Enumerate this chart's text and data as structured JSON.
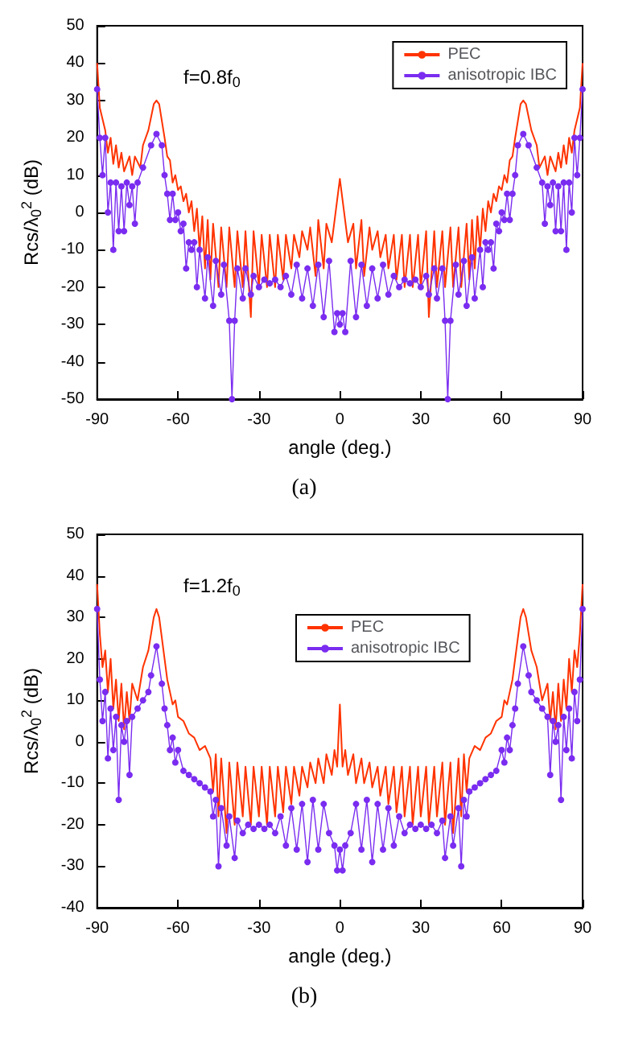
{
  "chart_data": [
    {
      "type": "line",
      "xlabel": "angle (deg.)",
      "ylabel": "Rcs/λ$_{0}$$^{2}$ (dB)",
      "annotations": [
        "f=0.8f$_{0}$",
        "(a)"
      ],
      "xlim": [
        -90,
        90
      ],
      "xticks": [
        -90,
        -60,
        -30,
        0,
        30,
        60,
        90
      ],
      "ylim": [
        -50,
        50
      ],
      "yticks": [
        -50,
        -40,
        -30,
        -20,
        -10,
        0,
        10,
        20,
        30,
        40,
        50
      ],
      "legend": "top right",
      "series": [
        {
          "name": "PEC",
          "color": "#ff3300",
          "marker": "none",
          "x": [
            -90,
            -89,
            -87,
            -86,
            -85,
            -84,
            -83,
            -82,
            -81,
            -80,
            -78,
            -77,
            -76,
            -74,
            -73,
            -71,
            -69,
            -68,
            -67,
            -65,
            -64,
            -63,
            -62,
            -61,
            -60,
            -59,
            -58,
            -57,
            -56,
            -55,
            -54,
            -53,
            -52,
            -51,
            -50,
            -49,
            -48,
            -47,
            -45,
            -44,
            -42,
            -41,
            -39,
            -38,
            -36,
            -35,
            -33,
            -32,
            -30,
            -29,
            -27,
            -26,
            -24,
            -23,
            -21,
            -20,
            -18,
            -17,
            -15,
            -14,
            -12,
            -11,
            -9,
            -8,
            -6,
            -5,
            -3,
            0,
            3,
            5,
            6,
            8,
            9,
            11,
            12,
            14,
            15,
            17,
            18,
            20,
            21,
            23,
            24,
            26,
            27,
            29,
            30,
            32,
            33,
            35,
            36,
            38,
            39,
            41,
            42,
            44,
            45,
            47,
            48,
            49,
            50,
            51,
            52,
            53,
            54,
            55,
            56,
            57,
            58,
            59,
            60,
            61,
            62,
            63,
            64,
            65,
            67,
            68,
            69,
            71,
            73,
            74,
            76,
            77,
            78,
            80,
            81,
            82,
            83,
            84,
            85,
            86,
            87,
            89,
            90
          ],
          "values": [
            40,
            28,
            22,
            16,
            20,
            13,
            18,
            12,
            16,
            11,
            15,
            10,
            15,
            12,
            18,
            22,
            29,
            30,
            29,
            20,
            15,
            14,
            8,
            10,
            6,
            7,
            3,
            5,
            0,
            3,
            -5,
            1,
            -10,
            -1,
            -15,
            -2,
            -18,
            -3,
            -20,
            -4,
            -20,
            -4,
            -20,
            -5,
            -20,
            -5,
            -28,
            -5,
            -20,
            -6,
            -20,
            -6,
            -20,
            -6,
            -18,
            -6,
            -15,
            -6,
            -12,
            -5,
            -10,
            -4,
            -17,
            -2,
            -15,
            -3,
            -8,
            9,
            -8,
            -3,
            -15,
            -2,
            -17,
            -4,
            -10,
            -5,
            -12,
            -6,
            -15,
            -6,
            -18,
            -6,
            -20,
            -6,
            -20,
            -6,
            -20,
            -5,
            -28,
            -5,
            -20,
            -5,
            -20,
            -4,
            -20,
            -4,
            -20,
            -3,
            -18,
            -2,
            -15,
            -1,
            -10,
            1,
            -5,
            3,
            0,
            5,
            3,
            7,
            6,
            10,
            8,
            14,
            15,
            20,
            29,
            30,
            29,
            22,
            18,
            12,
            15,
            10,
            15,
            11,
            16,
            12,
            18,
            13,
            20,
            16,
            22,
            28,
            40
          ]
        },
        {
          "name": "anisotropic IBC",
          "color": "#7a2cf0",
          "marker": "circle",
          "x": [
            -90,
            -89,
            -88,
            -87,
            -86,
            -85,
            -84,
            -83,
            -82,
            -81,
            -80,
            -79,
            -78,
            -77,
            -76,
            -75,
            -73,
            -70,
            -68,
            -66,
            -65,
            -64,
            -63,
            -62,
            -61,
            -60,
            -59,
            -58,
            -57,
            -56,
            -55,
            -54,
            -53,
            -52,
            -50,
            -49,
            -47,
            -46,
            -44,
            -43,
            -41,
            -40,
            -39,
            -38,
            -36,
            -35,
            -33,
            -32,
            -30,
            -28,
            -26,
            -24,
            -22,
            -20,
            -18,
            -16,
            -14,
            -12,
            -10,
            -8,
            -6,
            -4,
            -2,
            -1,
            0,
            1,
            2,
            4,
            6,
            8,
            10,
            12,
            14,
            16,
            18,
            20,
            22,
            24,
            26,
            28,
            30,
            32,
            33,
            35,
            36,
            38,
            39,
            40,
            41,
            43,
            44,
            46,
            47,
            49,
            50,
            52,
            53,
            54,
            55,
            56,
            57,
            58,
            59,
            60,
            61,
            62,
            63,
            64,
            65,
            66,
            68,
            70,
            73,
            75,
            76,
            77,
            78,
            79,
            80,
            81,
            82,
            83,
            84,
            85,
            86,
            87,
            88,
            89,
            90
          ],
          "values": [
            33,
            20,
            10,
            20,
            0,
            8,
            -10,
            8,
            -5,
            7,
            -5,
            8,
            2,
            7,
            -3,
            8,
            12,
            18,
            21,
            18,
            10,
            5,
            -2,
            5,
            -2,
            0,
            -5,
            -3,
            -15,
            -8,
            -10,
            -8,
            -20,
            -10,
            -23,
            -12,
            -25,
            -13,
            -22,
            -14,
            -29,
            -50,
            -29,
            -15,
            -23,
            -15,
            -22,
            -17,
            -20,
            -18,
            -19,
            -18,
            -20,
            -17,
            -22,
            -14,
            -23,
            -15,
            -25,
            -14,
            -28,
            -13,
            -32,
            -27,
            -30,
            -27,
            -32,
            -13,
            -28,
            -14,
            -25,
            -15,
            -23,
            -14,
            -22,
            -17,
            -20,
            -18,
            -19,
            -18,
            -20,
            -17,
            -22,
            -15,
            -23,
            -15,
            -29,
            -50,
            -29,
            -14,
            -22,
            -13,
            -25,
            -12,
            -23,
            -10,
            -20,
            -8,
            -10,
            -8,
            -15,
            -3,
            -5,
            0,
            -2,
            5,
            -2,
            5,
            10,
            18,
            21,
            18,
            12,
            8,
            -3,
            7,
            2,
            8,
            -5,
            7,
            -5,
            8,
            -10,
            8,
            0,
            20,
            10,
            20,
            33
          ]
        }
      ]
    },
    {
      "type": "line",
      "xlabel": "angle (deg.)",
      "ylabel": "Rcs/λ$_{0}$$^{2}$ (dB)",
      "annotations": [
        "f=1.2f$_{0}$",
        "(b)"
      ],
      "xlim": [
        -90,
        90
      ],
      "xticks": [
        -90,
        -60,
        -30,
        0,
        30,
        60,
        90
      ],
      "ylim": [
        -40,
        50
      ],
      "yticks": [
        -40,
        -30,
        -20,
        -10,
        0,
        10,
        20,
        30,
        40,
        50
      ],
      "legend": "top",
      "series": [
        {
          "name": "PEC",
          "color": "#ff3300",
          "marker": "none",
          "x": [
            -90,
            -89,
            -88,
            -87,
            -86,
            -85,
            -84,
            -83,
            -82,
            -81,
            -80,
            -79,
            -78,
            -77,
            -75,
            -73,
            -71,
            -69,
            -68,
            -67,
            -65,
            -64,
            -63,
            -62,
            -61,
            -60,
            -58,
            -56,
            -54,
            -52,
            -50,
            -48,
            -47,
            -46,
            -45,
            -44,
            -42,
            -41,
            -39,
            -38,
            -36,
            -35,
            -33,
            -32,
            -30,
            -29,
            -27,
            -26,
            -24,
            -23,
            -21,
            -20,
            -18,
            -17,
            -15,
            -14,
            -12,
            -11,
            -9,
            -8,
            -6,
            -5,
            -3,
            -2,
            -1,
            0,
            1,
            2,
            3,
            5,
            6,
            8,
            9,
            11,
            12,
            14,
            15,
            17,
            18,
            20,
            21,
            23,
            24,
            26,
            27,
            29,
            30,
            32,
            33,
            35,
            36,
            38,
            39,
            41,
            42,
            44,
            45,
            46,
            47,
            48,
            50,
            52,
            54,
            56,
            58,
            60,
            61,
            62,
            63,
            64,
            65,
            67,
            68,
            69,
            71,
            73,
            75,
            77,
            78,
            79,
            80,
            81,
            82,
            83,
            84,
            85,
            86,
            87,
            88,
            89,
            90
          ],
          "values": [
            38,
            26,
            18,
            22,
            12,
            20,
            8,
            15,
            5,
            14,
            3,
            12,
            5,
            14,
            10,
            18,
            22,
            30,
            32,
            30,
            20,
            15,
            12,
            9,
            10,
            6,
            5,
            2,
            1,
            -2,
            -1,
            -4,
            -12,
            -3,
            -18,
            -4,
            -22,
            -5,
            -20,
            -5,
            -18,
            -6,
            -20,
            -6,
            -18,
            -6,
            -20,
            -6,
            -18,
            -6,
            -17,
            -6,
            -15,
            -6,
            -13,
            -6,
            -11,
            -5,
            -10,
            -4,
            -10,
            -3,
            -8,
            -2,
            -6,
            9,
            -6,
            -2,
            -8,
            -3,
            -10,
            -4,
            -10,
            -5,
            -11,
            -6,
            -13,
            -6,
            -15,
            -6,
            -17,
            -6,
            -18,
            -6,
            -20,
            -6,
            -18,
            -6,
            -20,
            -6,
            -18,
            -5,
            -20,
            -5,
            -22,
            -4,
            -18,
            -3,
            -12,
            -4,
            -1,
            -2,
            1,
            2,
            5,
            6,
            10,
            9,
            12,
            15,
            20,
            30,
            32,
            30,
            22,
            18,
            10,
            14,
            5,
            12,
            3,
            14,
            5,
            15,
            8,
            20,
            12,
            22,
            18,
            26,
            38
          ]
        },
        {
          "name": "anisotropic IBC",
          "color": "#7a2cf0",
          "marker": "circle",
          "x": [
            -90,
            -89,
            -88,
            -87,
            -86,
            -85,
            -84,
            -83,
            -82,
            -81,
            -80,
            -79,
            -78,
            -77,
            -75,
            -73,
            -71,
            -70,
            -68,
            -66,
            -65,
            -64,
            -63,
            -62,
            -61,
            -60,
            -58,
            -56,
            -54,
            -52,
            -50,
            -48,
            -47,
            -46,
            -45,
            -44,
            -42,
            -41,
            -39,
            -38,
            -36,
            -34,
            -32,
            -30,
            -28,
            -26,
            -24,
            -22,
            -20,
            -18,
            -16,
            -14,
            -12,
            -10,
            -8,
            -6,
            -4,
            -2,
            -1,
            0,
            1,
            2,
            4,
            6,
            8,
            10,
            12,
            14,
            16,
            18,
            20,
            22,
            24,
            26,
            28,
            30,
            32,
            34,
            36,
            38,
            39,
            41,
            42,
            44,
            45,
            46,
            47,
            48,
            50,
            52,
            54,
            56,
            58,
            60,
            61,
            62,
            63,
            64,
            65,
            66,
            68,
            70,
            71,
            73,
            75,
            77,
            78,
            79,
            80,
            81,
            82,
            83,
            84,
            85,
            86,
            87,
            88,
            89,
            90
          ],
          "values": [
            32,
            15,
            5,
            12,
            -4,
            8,
            -2,
            6,
            -14,
            4,
            0,
            5,
            -8,
            6,
            8,
            10,
            12,
            16,
            23,
            14,
            8,
            4,
            -2,
            1,
            -5,
            -2,
            -7,
            -8,
            -9,
            -10,
            -11,
            -12,
            -18,
            -14,
            -30,
            -16,
            -25,
            -18,
            -28,
            -19,
            -22,
            -20,
            -21,
            -20,
            -21,
            -20,
            -22,
            -18,
            -25,
            -16,
            -26,
            -15,
            -29,
            -14,
            -26,
            -15,
            -22,
            -25,
            -31,
            -26,
            -31,
            -25,
            -22,
            -15,
            -26,
            -14,
            -29,
            -15,
            -26,
            -16,
            -25,
            -18,
            -22,
            -20,
            -21,
            -20,
            -21,
            -20,
            -22,
            -19,
            -28,
            -18,
            -25,
            -16,
            -30,
            -14,
            -18,
            -12,
            -11,
            -10,
            -9,
            -8,
            -7,
            -2,
            -5,
            1,
            -2,
            4,
            8,
            14,
            23,
            16,
            12,
            10,
            8,
            6,
            -8,
            5,
            0,
            4,
            -14,
            6,
            -2,
            8,
            -4,
            12,
            5,
            15,
            32
          ]
        }
      ]
    }
  ]
}
